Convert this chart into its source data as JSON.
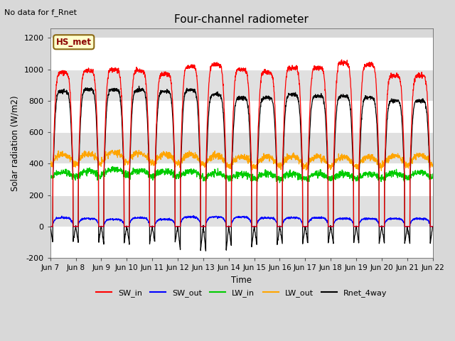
{
  "title": "Four-channel radiometer",
  "top_left_text": "No data for f_Rnet",
  "annotation_box": "HS_met",
  "ylabel": "Solar radiation (W/m2)",
  "xlabel": "Time",
  "ylim": [
    -200,
    1260
  ],
  "yticks": [
    -200,
    0,
    200,
    400,
    600,
    800,
    1000,
    1200
  ],
  "x_tick_labels": [
    "Jun 7",
    "Jun 8",
    "Jun 9",
    "Jun 10",
    "Jun 11",
    "Jun 12",
    "Jun 13",
    "Jun 14",
    "Jun 15",
    "Jun 16",
    "Jun 17",
    "Jun 18",
    "Jun 19",
    "Jun 20",
    "Jun 21",
    "Jun 22"
  ],
  "n_days": 15,
  "figsize": [
    6.4,
    4.8
  ],
  "dpi": 100,
  "background_color": "#d8d8d8",
  "plot_bg_color": "#d8d8d8",
  "colors": {
    "SW_in": "#ff0000",
    "SW_out": "#0000ff",
    "LW_in": "#00cc00",
    "LW_out": "#ffa500",
    "Rnet_4way": "#000000"
  },
  "legend_labels": [
    "SW_in",
    "SW_out",
    "LW_in",
    "LW_out",
    "Rnet_4way"
  ],
  "band_colors": [
    "#ffffff",
    "#e0e0e0"
  ]
}
